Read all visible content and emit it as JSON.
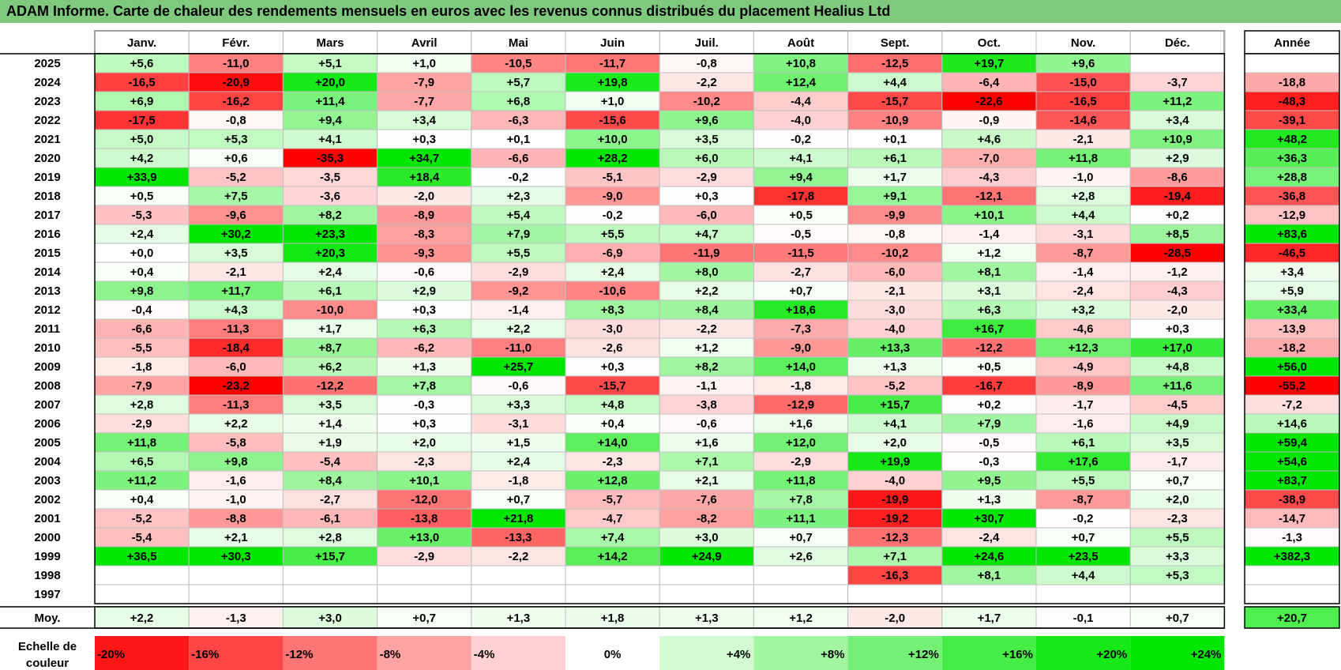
{
  "title": "ADAM Informe. Carte de chaleur des rendements mensuels en euros avec les revenus connus distribués du placement Healius Ltd",
  "chart_data": {
    "type": "heatmap",
    "months": [
      "Janv.",
      "Févr.",
      "Mars",
      "Avril",
      "Mai",
      "Juin",
      "Juil.",
      "Août",
      "Sept.",
      "Oct.",
      "Nov.",
      "Déc."
    ],
    "year_header": "Année",
    "avg_label": "Moy.",
    "legend_label": "Echelle de couleur",
    "legend": [
      "-20%",
      "-16%",
      "-12%",
      "-8%",
      "-4%",
      "0%",
      "+4%",
      "+8%",
      "+12%",
      "+16%",
      "+20%",
      "+24%"
    ],
    "legend_values": [
      -20,
      -16,
      -12,
      -8,
      -4,
      0,
      4,
      8,
      12,
      16,
      20,
      24
    ],
    "colors": {
      "negative": "#ff0000",
      "positive": "#00e000",
      "neutral": "#ffffff"
    },
    "rows": [
      {
        "year": "2025",
        "values": [
          5.6,
          -11.0,
          5.1,
          1.0,
          -10.5,
          -11.7,
          -0.8,
          10.8,
          -12.5,
          19.7,
          9.6,
          null
        ],
        "annual": null
      },
      {
        "year": "2024",
        "values": [
          -16.5,
          -20.9,
          20.0,
          -7.9,
          5.7,
          19.8,
          -2.2,
          12.4,
          4.4,
          -6.4,
          -15.0,
          -3.7
        ],
        "annual": -18.8
      },
      {
        "year": "2023",
        "values": [
          6.9,
          -16.2,
          11.4,
          -7.7,
          6.8,
          1.0,
          -10.2,
          -4.4,
          -15.7,
          -22.6,
          -16.5,
          11.2
        ],
        "annual": -48.3
      },
      {
        "year": "2022",
        "values": [
          -17.5,
          -0.8,
          9.4,
          3.4,
          -6.3,
          -15.6,
          9.6,
          -4.0,
          -10.9,
          -0.9,
          -14.6,
          3.4
        ],
        "annual": -39.1
      },
      {
        "year": "2021",
        "values": [
          5.0,
          5.3,
          4.1,
          0.3,
          0.1,
          10.0,
          3.5,
          -0.2,
          0.1,
          4.6,
          -2.1,
          10.9
        ],
        "annual": 48.2
      },
      {
        "year": "2020",
        "values": [
          4.2,
          0.6,
          -35.3,
          34.7,
          -6.6,
          28.2,
          6.0,
          4.1,
          6.1,
          -7.0,
          11.8,
          2.9
        ],
        "annual": 36.3
      },
      {
        "year": "2019",
        "values": [
          33.9,
          -5.2,
          -3.5,
          18.4,
          -0.2,
          -5.1,
          -2.9,
          9.4,
          1.7,
          -4.3,
          -1.0,
          -8.6
        ],
        "annual": 28.8
      },
      {
        "year": "2018",
        "values": [
          0.5,
          7.5,
          -3.6,
          -2.0,
          2.3,
          -9.0,
          0.3,
          -17.8,
          9.1,
          -12.1,
          2.8,
          -19.4
        ],
        "annual": -36.8
      },
      {
        "year": "2017",
        "values": [
          -5.3,
          -9.6,
          8.2,
          -8.9,
          5.4,
          -0.2,
          -6.0,
          0.5,
          -9.9,
          10.1,
          4.4,
          0.2
        ],
        "annual": -12.9
      },
      {
        "year": "2016",
        "values": [
          2.4,
          30.2,
          23.3,
          -8.3,
          7.9,
          5.5,
          4.7,
          -0.5,
          -0.8,
          -1.4,
          -3.1,
          8.5
        ],
        "annual": 83.6
      },
      {
        "year": "2015",
        "values": [
          0.0,
          3.5,
          20.3,
          -9.3,
          5.5,
          -6.9,
          -11.9,
          -11.5,
          -10.2,
          1.2,
          -8.7,
          -28.5
        ],
        "annual": -46.5
      },
      {
        "year": "2014",
        "values": [
          0.4,
          -2.1,
          2.4,
          -0.6,
          -2.9,
          2.4,
          8.0,
          -2.7,
          -6.0,
          8.1,
          -1.4,
          -1.2
        ],
        "annual": 3.4
      },
      {
        "year": "2013",
        "values": [
          9.8,
          11.7,
          6.1,
          2.9,
          -9.2,
          -10.6,
          2.2,
          0.7,
          -2.1,
          3.1,
          -2.4,
          -4.3
        ],
        "annual": 5.9
      },
      {
        "year": "2012",
        "values": [
          -0.4,
          4.3,
          -10.0,
          0.3,
          -1.4,
          8.3,
          8.4,
          18.6,
          -3.0,
          6.3,
          3.2,
          -2.0
        ],
        "annual": 33.4
      },
      {
        "year": "2011",
        "values": [
          -6.6,
          -11.3,
          1.7,
          6.3,
          2.2,
          -3.0,
          -2.2,
          -7.3,
          -4.0,
          16.7,
          -4.6,
          0.3
        ],
        "annual": -13.9
      },
      {
        "year": "2010",
        "values": [
          -5.5,
          -18.4,
          8.7,
          -6.2,
          -11.0,
          -2.6,
          1.2,
          -9.0,
          13.3,
          -12.2,
          12.3,
          17.0
        ],
        "annual": -18.2
      },
      {
        "year": "2009",
        "values": [
          -1.8,
          -6.0,
          6.2,
          1.3,
          25.7,
          0.3,
          8.2,
          14.0,
          1.3,
          0.5,
          -4.9,
          4.8
        ],
        "annual": 56.0
      },
      {
        "year": "2008",
        "values": [
          -7.9,
          -23.2,
          -12.2,
          7.8,
          -0.6,
          -15.7,
          -1.1,
          -1.8,
          -5.2,
          -16.7,
          -8.9,
          11.6
        ],
        "annual": -55.2
      },
      {
        "year": "2007",
        "values": [
          2.8,
          -11.3,
          3.5,
          -0.3,
          3.3,
          4.8,
          -3.8,
          -12.9,
          15.7,
          0.2,
          -1.7,
          -4.5
        ],
        "annual": -7.2
      },
      {
        "year": "2006",
        "values": [
          -2.9,
          2.2,
          1.4,
          0.3,
          -3.1,
          0.4,
          -0.6,
          1.6,
          4.1,
          7.9,
          -1.6,
          4.9
        ],
        "annual": 14.6
      },
      {
        "year": "2005",
        "values": [
          11.8,
          -5.8,
          1.9,
          2.0,
          1.5,
          14.0,
          1.6,
          12.0,
          2.0,
          -0.5,
          6.1,
          3.5
        ],
        "annual": 59.4
      },
      {
        "year": "2004",
        "values": [
          6.5,
          9.8,
          -5.4,
          -2.3,
          2.4,
          -2.3,
          7.1,
          -2.9,
          19.9,
          -0.3,
          17.6,
          -1.7
        ],
        "annual": 54.6
      },
      {
        "year": "2003",
        "values": [
          11.2,
          -1.6,
          8.4,
          10.1,
          -1.8,
          12.8,
          2.1,
          11.8,
          -4.0,
          9.5,
          5.5,
          0.7
        ],
        "annual": 83.7
      },
      {
        "year": "2002",
        "values": [
          0.4,
          -1.0,
          -2.7,
          -12.0,
          0.7,
          -5.7,
          -7.6,
          7.8,
          -19.9,
          1.3,
          -8.7,
          2.0
        ],
        "annual": -38.9
      },
      {
        "year": "2001",
        "values": [
          -5.2,
          -8.8,
          -6.1,
          -13.8,
          21.8,
          -4.7,
          -8.2,
          11.1,
          -19.2,
          30.7,
          -0.2,
          -2.3
        ],
        "annual": -14.7
      },
      {
        "year": "2000",
        "values": [
          -5.4,
          2.1,
          2.8,
          13.0,
          -13.3,
          7.4,
          3.0,
          0.7,
          -12.3,
          -2.4,
          0.7,
          5.5
        ],
        "annual": -1.3
      },
      {
        "year": "1999",
        "values": [
          36.5,
          30.3,
          15.7,
          -2.9,
          -2.2,
          14.2,
          24.9,
          2.6,
          7.1,
          24.6,
          23.5,
          3.3
        ],
        "annual": 382.3
      },
      {
        "year": "1998",
        "values": [
          null,
          null,
          null,
          null,
          null,
          null,
          null,
          null,
          -16.3,
          8.1,
          4.4,
          5.3
        ],
        "annual": null
      },
      {
        "year": "1997",
        "values": [
          null,
          null,
          null,
          null,
          null,
          null,
          null,
          null,
          null,
          null,
          null,
          null
        ],
        "annual": null
      }
    ],
    "average": {
      "values": [
        2.2,
        -1.3,
        3.0,
        0.7,
        1.3,
        1.8,
        1.3,
        1.2,
        -2.0,
        1.7,
        -0.1,
        0.7
      ],
      "annual": 20.7
    }
  }
}
